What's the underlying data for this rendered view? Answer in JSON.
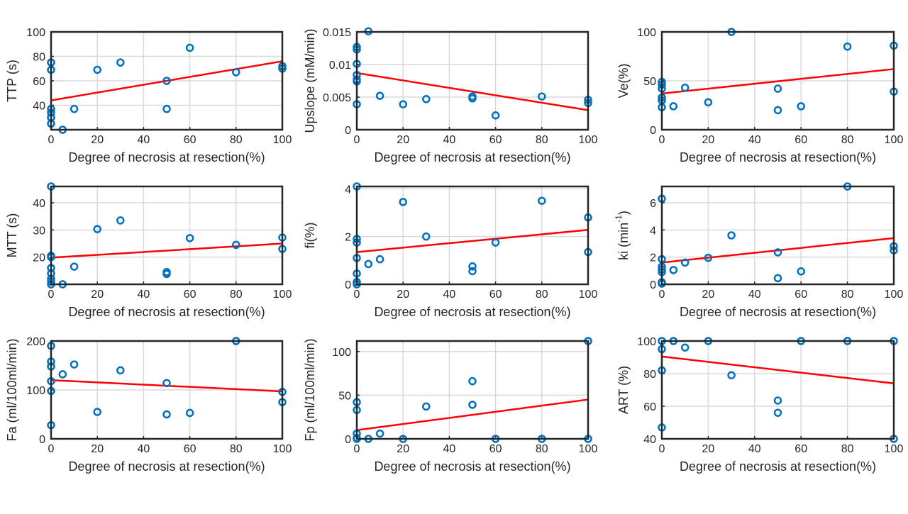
{
  "colors": {
    "marker": "#0072bd",
    "fit": "#ff0000",
    "grid": "#d9d9d9",
    "axis": "#262626"
  },
  "chart_data": [
    {
      "type": "scatter",
      "id": "ttp",
      "xlabel": "Degree of necrosis at resection(%)",
      "ylabel": "TTP (s)",
      "xlim": [
        0,
        100
      ],
      "ylim": [
        20,
        100
      ],
      "xticks": [
        0,
        20,
        40,
        60,
        80,
        100
      ],
      "xtick_labels": [
        "0",
        "20",
        "40",
        "60",
        "80",
        "100"
      ],
      "yticks": [
        40,
        60,
        80,
        100
      ],
      "ytick_labels": [
        "40",
        "60",
        "80",
        "100"
      ],
      "grid": true,
      "points": [
        [
          0,
          75
        ],
        [
          0,
          69
        ],
        [
          0,
          37
        ],
        [
          0,
          34
        ],
        [
          0,
          30
        ],
        [
          0,
          25
        ],
        [
          5,
          20
        ],
        [
          10,
          37
        ],
        [
          20,
          69
        ],
        [
          30,
          75
        ],
        [
          50,
          60
        ],
        [
          50,
          37
        ],
        [
          60,
          87
        ],
        [
          80,
          67
        ],
        [
          100,
          72
        ],
        [
          100,
          70
        ]
      ],
      "fit": [
        [
          0,
          44
        ],
        [
          100,
          76
        ]
      ]
    },
    {
      "type": "scatter",
      "id": "upslope",
      "xlabel": "Degree of necrosis at resection(%)",
      "ylabel": "Upslope (mM/min)",
      "xlim": [
        0,
        100
      ],
      "ylim": [
        0,
        0.015
      ],
      "xticks": [
        0,
        20,
        40,
        60,
        80,
        100
      ],
      "xtick_labels": [
        "0",
        "20",
        "40",
        "60",
        "80",
        "100"
      ],
      "yticks": [
        0,
        0.005,
        0.01,
        0.015
      ],
      "ytick_labels": [
        "0",
        "0.005",
        "0.01",
        "0.015"
      ],
      "grid": true,
      "points": [
        [
          0,
          0.0127
        ],
        [
          0,
          0.0123
        ],
        [
          0,
          0.0101
        ],
        [
          0,
          0.0084
        ],
        [
          0,
          0.0077
        ],
        [
          0,
          0.0074
        ],
        [
          0,
          0.0039
        ],
        [
          5,
          0.0151
        ],
        [
          10,
          0.0052
        ],
        [
          20,
          0.0039
        ],
        [
          30,
          0.0047
        ],
        [
          50,
          0.0051
        ],
        [
          50,
          0.0048
        ],
        [
          60,
          0.0022
        ],
        [
          80,
          0.0051
        ],
        [
          100,
          0.0046
        ],
        [
          100,
          0.0041
        ]
      ],
      "fit": [
        [
          0,
          0.0087
        ],
        [
          100,
          0.003
        ]
      ]
    },
    {
      "type": "scatter",
      "id": "ve",
      "xlabel": "Degree of necrosis at resection(%)",
      "ylabel": "Ve(%)",
      "xlim": [
        0,
        100
      ],
      "ylim": [
        0,
        100
      ],
      "xticks": [
        0,
        20,
        40,
        60,
        80,
        100
      ],
      "xtick_labels": [
        "0",
        "20",
        "40",
        "60",
        "80",
        "100"
      ],
      "yticks": [
        0,
        50,
        100
      ],
      "ytick_labels": [
        "0",
        "50",
        "100"
      ],
      "grid": true,
      "points": [
        [
          0,
          49
        ],
        [
          0,
          46
        ],
        [
          0,
          42
        ],
        [
          0,
          33
        ],
        [
          0,
          30
        ],
        [
          0,
          23
        ],
        [
          5,
          24
        ],
        [
          10,
          43
        ],
        [
          20,
          28
        ],
        [
          30,
          100
        ],
        [
          50,
          42
        ],
        [
          50,
          20
        ],
        [
          60,
          24
        ],
        [
          80,
          85
        ],
        [
          100,
          86
        ],
        [
          100,
          39
        ]
      ],
      "fit": [
        [
          0,
          37
        ],
        [
          100,
          62
        ]
      ]
    },
    {
      "type": "scatter",
      "id": "mtt",
      "xlabel": "Degree of necrosis at resection(%)",
      "ylabel": "MTT (s)",
      "xlim": [
        0,
        100
      ],
      "ylim": [
        10,
        46
      ],
      "xticks": [
        0,
        20,
        40,
        60,
        80,
        100
      ],
      "xtick_labels": [
        "0",
        "20",
        "40",
        "60",
        "80",
        "100"
      ],
      "yticks": [
        20,
        30,
        40
      ],
      "ytick_labels": [
        "20",
        "30",
        "40"
      ],
      "grid": true,
      "points": [
        [
          0,
          46
        ],
        [
          0,
          20.5
        ],
        [
          0,
          20
        ],
        [
          0,
          16
        ],
        [
          0,
          14
        ],
        [
          0,
          12
        ],
        [
          0,
          11
        ],
        [
          0,
          10
        ],
        [
          5,
          10
        ],
        [
          10,
          16.5
        ],
        [
          20,
          30.3
        ],
        [
          30,
          33.5
        ],
        [
          50,
          14.5
        ],
        [
          50,
          13.8
        ],
        [
          60,
          27
        ],
        [
          80,
          24.5
        ],
        [
          100,
          27.2
        ],
        [
          100,
          23
        ]
      ],
      "fit": [
        [
          0,
          19.8
        ],
        [
          100,
          25
        ]
      ]
    },
    {
      "type": "scatter",
      "id": "fi",
      "xlabel": "Degree of necrosis at resection(%)",
      "ylabel": "fi(%)",
      "xlim": [
        0,
        100
      ],
      "ylim": [
        0,
        4.1
      ],
      "xticks": [
        0,
        20,
        40,
        60,
        80,
        100
      ],
      "xtick_labels": [
        "0",
        "20",
        "40",
        "60",
        "80",
        "100"
      ],
      "yticks": [
        0,
        2,
        4
      ],
      "ytick_labels": [
        "0",
        "2",
        "4"
      ],
      "grid": true,
      "points": [
        [
          0,
          4.1
        ],
        [
          0,
          1.9
        ],
        [
          0,
          1.75
        ],
        [
          0,
          1.1
        ],
        [
          0,
          0.45
        ],
        [
          0,
          0.1
        ],
        [
          0,
          0
        ],
        [
          5,
          0.85
        ],
        [
          10,
          1.05
        ],
        [
          20,
          3.45
        ],
        [
          30,
          2.0
        ],
        [
          50,
          0.75
        ],
        [
          50,
          0.55
        ],
        [
          60,
          1.75
        ],
        [
          80,
          3.5
        ],
        [
          100,
          2.8
        ],
        [
          100,
          1.35
        ]
      ],
      "fit": [
        [
          0,
          1.35
        ],
        [
          100,
          2.28
        ]
      ]
    },
    {
      "type": "scatter",
      "id": "ki",
      "xlabel": "Degree of necrosis at resection(%)",
      "ylabel": "ki (min",
      "ylabel_sup": "-1",
      "ylabel_close": ")",
      "xlim": [
        0,
        100
      ],
      "ylim": [
        0,
        7.2
      ],
      "xticks": [
        0,
        20,
        40,
        60,
        80,
        100
      ],
      "xtick_labels": [
        "0",
        "20",
        "40",
        "60",
        "80",
        "100"
      ],
      "yticks": [
        0,
        2,
        4,
        6
      ],
      "ytick_labels": [
        "0",
        "2",
        "4",
        "6"
      ],
      "grid": true,
      "points": [
        [
          0,
          6.3
        ],
        [
          0,
          1.85
        ],
        [
          0,
          1.3
        ],
        [
          0,
          1.1
        ],
        [
          0,
          0.9
        ],
        [
          0,
          0.15
        ],
        [
          0,
          0.05
        ],
        [
          5,
          1.05
        ],
        [
          10,
          1.6
        ],
        [
          20,
          1.95
        ],
        [
          30,
          3.6
        ],
        [
          50,
          2.35
        ],
        [
          50,
          0.45
        ],
        [
          60,
          0.95
        ],
        [
          80,
          7.2
        ],
        [
          100,
          2.8
        ],
        [
          100,
          2.5
        ]
      ],
      "fit": [
        [
          0,
          1.6
        ],
        [
          100,
          3.4
        ]
      ]
    },
    {
      "type": "scatter",
      "id": "fa",
      "xlabel": "Degree of necrosis at resection(%)",
      "ylabel": "Fa (ml/100ml/min)",
      "xlim": [
        0,
        100
      ],
      "ylim": [
        0,
        200
      ],
      "xticks": [
        0,
        20,
        40,
        60,
        80,
        100
      ],
      "xtick_labels": [
        "0",
        "20",
        "40",
        "60",
        "80",
        "100"
      ],
      "yticks": [
        0,
        100,
        200
      ],
      "ytick_labels": [
        "0",
        "100",
        "200"
      ],
      "grid": true,
      "points": [
        [
          0,
          190
        ],
        [
          0,
          158
        ],
        [
          0,
          148
        ],
        [
          0,
          118
        ],
        [
          0,
          98
        ],
        [
          0,
          28
        ],
        [
          5,
          132
        ],
        [
          10,
          152
        ],
        [
          20,
          55
        ],
        [
          30,
          140
        ],
        [
          50,
          114
        ],
        [
          50,
          50
        ],
        [
          60,
          53
        ],
        [
          80,
          200
        ],
        [
          100,
          96
        ],
        [
          100,
          75
        ]
      ],
      "fit": [
        [
          0,
          120
        ],
        [
          100,
          97
        ]
      ]
    },
    {
      "type": "scatter",
      "id": "fp",
      "xlabel": "Degree of necrosis at resection(%)",
      "ylabel": "Fp (ml/100ml/min)",
      "xlim": [
        0,
        100
      ],
      "ylim": [
        0,
        112
      ],
      "xticks": [
        0,
        20,
        40,
        60,
        80,
        100
      ],
      "xtick_labels": [
        "0",
        "20",
        "40",
        "60",
        "80",
        "100"
      ],
      "yticks": [
        0,
        50,
        100
      ],
      "ytick_labels": [
        "0",
        "50",
        "100"
      ],
      "grid": true,
      "points": [
        [
          0,
          42
        ],
        [
          0,
          33
        ],
        [
          0,
          6
        ],
        [
          0,
          1
        ],
        [
          0,
          0
        ],
        [
          5,
          0
        ],
        [
          10,
          6
        ],
        [
          20,
          0
        ],
        [
          30,
          37
        ],
        [
          50,
          66
        ],
        [
          50,
          39
        ],
        [
          60,
          0
        ],
        [
          80,
          0
        ],
        [
          100,
          112
        ],
        [
          100,
          0
        ]
      ],
      "fit": [
        [
          0,
          10
        ],
        [
          100,
          45
        ]
      ]
    },
    {
      "type": "scatter",
      "id": "art",
      "xlabel": "Degree of necrosis at resection(%)",
      "ylabel": "ART (%)",
      "xlim": [
        0,
        100
      ],
      "ylim": [
        40,
        100
      ],
      "xticks": [
        0,
        20,
        40,
        60,
        80,
        100
      ],
      "xtick_labels": [
        "0",
        "20",
        "40",
        "60",
        "80",
        "100"
      ],
      "yticks": [
        40,
        60,
        80,
        100
      ],
      "ytick_labels": [
        "40",
        "60",
        "80",
        "100"
      ],
      "grid": true,
      "points": [
        [
          0,
          100
        ],
        [
          0,
          95
        ],
        [
          0,
          82
        ],
        [
          0,
          47
        ],
        [
          5,
          100
        ],
        [
          10,
          96
        ],
        [
          20,
          100
        ],
        [
          30,
          79
        ],
        [
          50,
          63.5
        ],
        [
          50,
          56
        ],
        [
          60,
          100
        ],
        [
          80,
          100
        ],
        [
          100,
          100
        ],
        [
          100,
          40
        ]
      ],
      "fit": [
        [
          0,
          90.5
        ],
        [
          100,
          74
        ]
      ]
    }
  ]
}
